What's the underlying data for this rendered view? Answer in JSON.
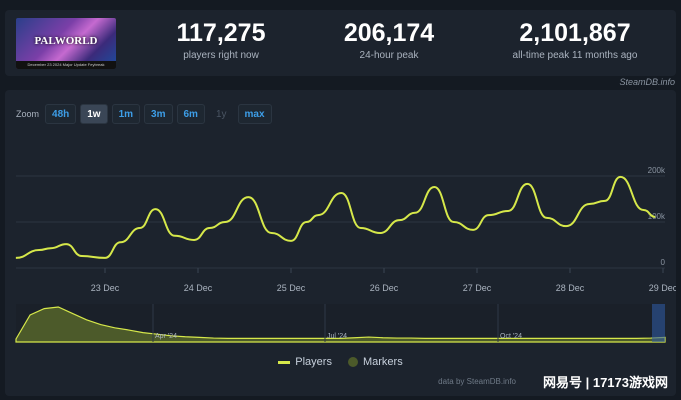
{
  "header": {
    "game_title": "PALWORLD",
    "cover_caption": "December 23 2024 Major Update Feybreak",
    "stats": [
      {
        "value": "117,275",
        "label": "players right now"
      },
      {
        "value": "206,174",
        "label": "24-hour peak"
      },
      {
        "value": "2,101,867",
        "label": "all-time peak 11 months ago"
      }
    ]
  },
  "brand": "SteamDB.info",
  "zoom": {
    "label": "Zoom",
    "options": [
      "48h",
      "1w",
      "1m",
      "3m",
      "6m",
      "1y",
      "max"
    ],
    "active": "1w",
    "disabled": [
      "1y"
    ]
  },
  "chart_data": {
    "type": "line",
    "series": [
      {
        "name": "Players",
        "color": "#d6e84a",
        "points": [
          [
            "2024-12-22 01:00",
            22000
          ],
          [
            "2024-12-22 07:00",
            39000
          ],
          [
            "2024-12-22 10:00",
            43000
          ],
          [
            "2024-12-22 14:00",
            52000
          ],
          [
            "2024-12-22 18:00",
            26000
          ],
          [
            "2024-12-23 00:00",
            22000
          ],
          [
            "2024-12-23 04:00",
            56000
          ],
          [
            "2024-12-23 09:00",
            87000
          ],
          [
            "2024-12-23 13:00",
            128000
          ],
          [
            "2024-12-23 18:00",
            70000
          ],
          [
            "2024-12-23 23:00",
            61000
          ],
          [
            "2024-12-24 03:00",
            87000
          ],
          [
            "2024-12-24 07:00",
            100000
          ],
          [
            "2024-12-24 13:00",
            154000
          ],
          [
            "2024-12-24 19:00",
            76000
          ],
          [
            "2024-12-25 00:00",
            59000
          ],
          [
            "2024-12-25 04:00",
            100000
          ],
          [
            "2024-12-25 07:00",
            115000
          ],
          [
            "2024-12-25 13:00",
            163000
          ],
          [
            "2024-12-25 18:00",
            87000
          ],
          [
            "2024-12-25 23:00",
            76000
          ],
          [
            "2024-12-26 04:00",
            104000
          ],
          [
            "2024-12-26 08:00",
            120000
          ],
          [
            "2024-12-26 13:00",
            176000
          ],
          [
            "2024-12-26 18:00",
            100000
          ],
          [
            "2024-12-26 23:00",
            83000
          ],
          [
            "2024-12-27 03:00",
            115000
          ],
          [
            "2024-12-27 08:00",
            124000
          ],
          [
            "2024-12-27 13:00",
            183000
          ],
          [
            "2024-12-27 18:00",
            109000
          ],
          [
            "2024-12-27 23:00",
            91000
          ],
          [
            "2024-12-28 05:00",
            139000
          ],
          [
            "2024-12-28 09:00",
            146000
          ],
          [
            "2024-12-28 13:00",
            198000
          ],
          [
            "2024-12-28 19:00",
            126000
          ],
          [
            "2024-12-28 22:00",
            111000
          ]
        ]
      }
    ],
    "x_ticks": [
      "23 Dec",
      "24 Dec",
      "25 Dec",
      "26 Dec",
      "27 Dec",
      "28 Dec",
      "29 Dec"
    ],
    "y_ticks": [
      "0",
      "100k",
      "200k"
    ],
    "ylim": [
      0,
      200000
    ],
    "grid": true
  },
  "navigator": {
    "labels": [
      "Apr '24",
      "Jul '24",
      "Oct '24"
    ],
    "values": [
      0.0,
      0.75,
      0.95,
      1.0,
      0.8,
      0.6,
      0.45,
      0.35,
      0.28,
      0.2,
      0.15,
      0.1,
      0.07,
      0.05,
      0.03,
      0.02,
      0.02,
      0.02,
      0.02,
      0.02,
      0.02,
      0.02,
      0.02,
      0.02,
      0.04,
      0.06,
      0.04,
      0.03,
      0.03,
      0.02,
      0.02,
      0.02,
      0.02,
      0.02,
      0.02,
      0.02,
      0.02,
      0.02,
      0.02,
      0.02,
      0.02,
      0.02,
      0.02,
      0.02,
      0.02,
      0.03,
      0.05
    ]
  },
  "legend": {
    "players": "Players",
    "markers": "Markers"
  },
  "credit": "data by SteamDB.info",
  "watermark": "网易号 | 17173游戏网"
}
